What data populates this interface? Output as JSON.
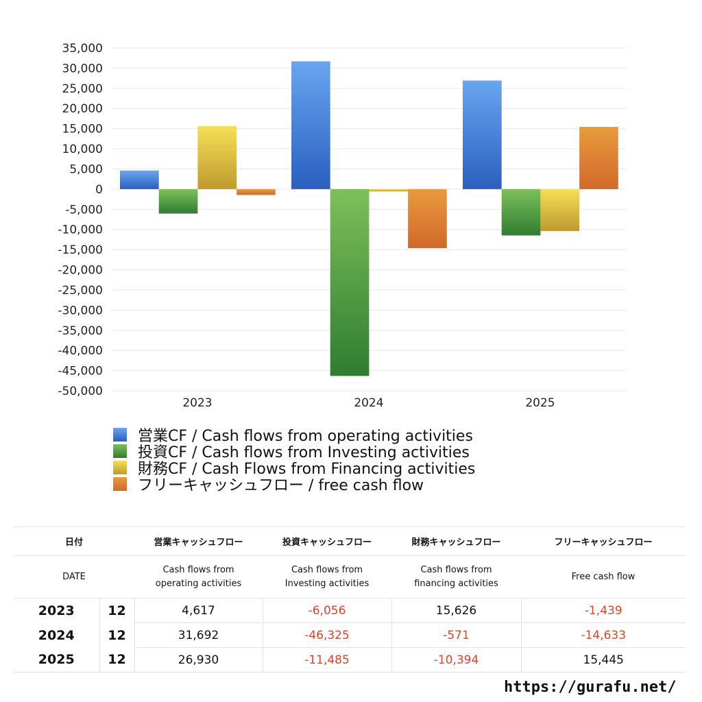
{
  "chart_data": {
    "type": "bar",
    "categories": [
      "2023",
      "2024",
      "2025"
    ],
    "ylim": [
      -50000,
      35000
    ],
    "ytick_step": 5000,
    "grid": true,
    "legend_position": "bottom",
    "series": [
      {
        "name": "営業CF / Cash flows from operating activities",
        "values": [
          4617,
          31692,
          26930
        ],
        "color_top": "#6aa5f0",
        "color_bottom": "#2a5fbf"
      },
      {
        "name": "投資CF / Cash flows from Investing activities",
        "values": [
          -6056,
          -46325,
          -11485
        ],
        "color_top": "#7dc05a",
        "color_bottom": "#2f7d32"
      },
      {
        "name": "財務CF / Cash Flows from Financing activities",
        "values": [
          15626,
          -571,
          -10394
        ],
        "color_top": "#f5e055",
        "color_bottom": "#bf9a30"
      },
      {
        "name": "フリーキャッシュフロー / free cash flow",
        "values": [
          -1439,
          -14633,
          15445
        ],
        "color_top": "#e89b3c",
        "color_bottom": "#d2692a"
      }
    ]
  },
  "table": {
    "headers": [
      "日付",
      "営業キャッシュフロー",
      "投資キャッシュフロー",
      "財務キャッシュフロー",
      "フリーキャッシュフロー"
    ],
    "subheaders": [
      "DATE",
      "Cash flows from",
      "operating activities",
      "Cash flows from",
      "Investing activities",
      "Cash flows from",
      "financing activities",
      "Free cash flow"
    ],
    "rows": [
      {
        "year": "2023",
        "month": "12",
        "op": "4,617",
        "inv": "-6,056",
        "fin": "15,626",
        "free": "-1,439"
      },
      {
        "year": "2024",
        "month": "12",
        "op": "31,692",
        "inv": "-46,325",
        "fin": "-571",
        "free": "-14,633"
      },
      {
        "year": "2025",
        "month": "12",
        "op": "26,930",
        "inv": "-11,485",
        "fin": "-10,394",
        "free": "15,445"
      }
    ],
    "negative_color": "#d9472b"
  },
  "site": "https://gurafu.net/"
}
